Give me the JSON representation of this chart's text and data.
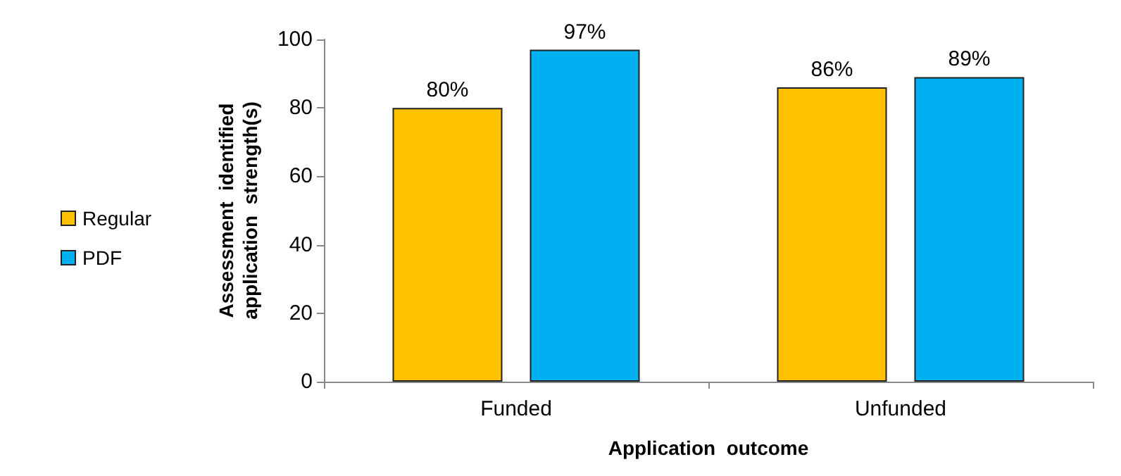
{
  "chart_data": {
    "type": "bar",
    "xlabel": "Application  outcome",
    "ylabel": "Assessment  identified\napplication  strength(s)",
    "categories": [
      "Funded",
      "Unfunded"
    ],
    "series": [
      {
        "name": "Regular",
        "color": "#ffc000",
        "values": [
          80,
          86
        ],
        "value_labels": [
          "80%",
          "86%"
        ]
      },
      {
        "name": "PDF",
        "color": "#00b0f0",
        "values": [
          97,
          89
        ],
        "value_labels": [
          "97%",
          "89%"
        ]
      }
    ],
    "ylim": [
      0,
      100
    ],
    "yticks": [
      0,
      20,
      40,
      60,
      80,
      100
    ],
    "grid": false,
    "legend": "left"
  }
}
